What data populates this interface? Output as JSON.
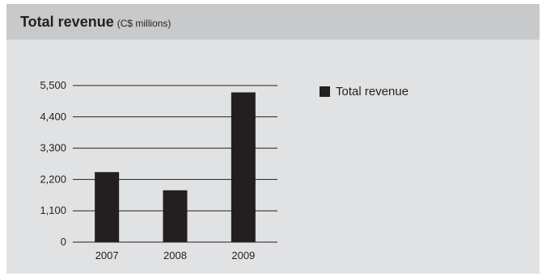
{
  "header": {
    "title": "Total revenue",
    "subtitle": "(C$ millions)"
  },
  "colors": {
    "panel_background": "#e1e2e3",
    "header_background": "#c8c9cb",
    "bar": "#231f20",
    "text": "#231f20"
  },
  "chart_data": {
    "type": "bar",
    "title": "Total revenue",
    "subtitle": "(C$ millions)",
    "categories": [
      "2007",
      "2008",
      "2009"
    ],
    "series": [
      {
        "name": "Total revenue",
        "values": [
          2460,
          1820,
          5260
        ]
      }
    ],
    "ylim": [
      0,
      5500
    ],
    "yticks": [
      0,
      1100,
      2200,
      3300,
      4400,
      5500
    ],
    "ytick_labels": [
      "0",
      "1,100",
      "2,200",
      "3,300",
      "4,400",
      "5,500"
    ],
    "grid": true,
    "legend": "right"
  }
}
